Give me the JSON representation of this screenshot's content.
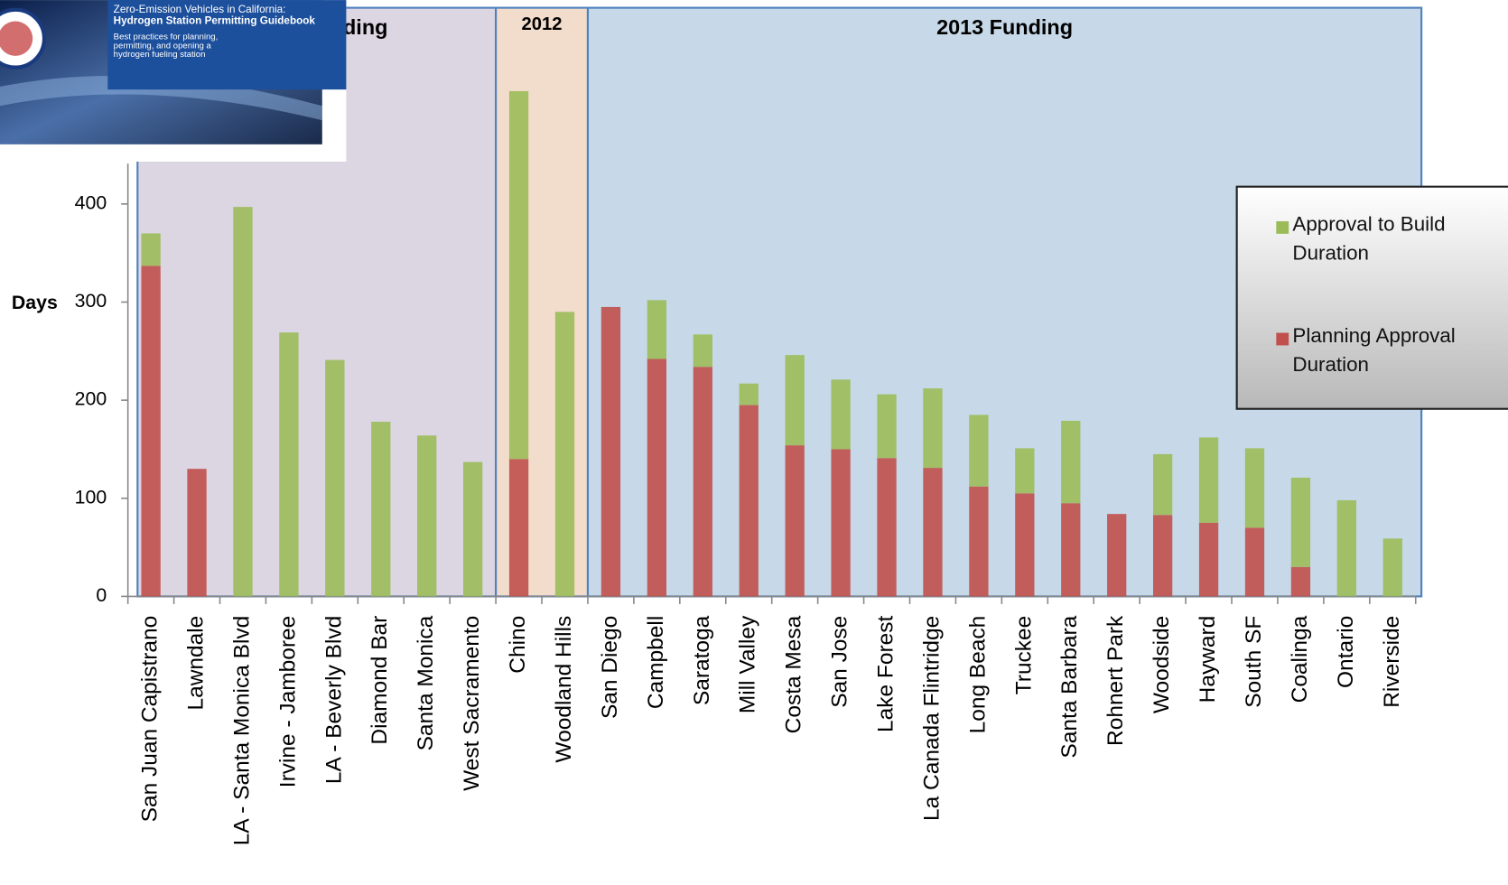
{
  "thumbnail": {
    "title": "Zero-Emission Vehicles in California:",
    "subtitle": "Hydrogen Station Permitting Guidebook",
    "caption": "Best practices for planning, permitting, and opening a hydrogen fueling station"
  },
  "chart_data": {
    "type": "stacked_bar",
    "y_label": "Days",
    "regions": [
      {
        "label": "ding",
        "color": "#dcd6e2"
      },
      {
        "label": "2012",
        "color": "#f2dccb"
      },
      {
        "label": "2013 Funding",
        "color": "#c7d9e8"
      }
    ],
    "categories": [
      "San Juan Capistrano",
      "Lawndale",
      "LA - Santa Monica Blvd",
      "Irvine - Jamboree",
      "LA - Beverly Blvd",
      "Diamond Bar",
      "Santa Monica",
      "West Sacramento",
      "Chino",
      "Woodland Hills",
      "San Diego",
      "Campbell",
      "Saratoga",
      "Mill Valley",
      "Costa Mesa",
      "San Jose",
      "Lake Forest",
      "La Canada Flintridge",
      "Long Beach",
      "Truckee",
      "Santa Barbara",
      "Rohnert Park",
      "Woodside",
      "Hayward",
      "South SF",
      "Coalinga",
      "Ontario",
      "Riverside"
    ],
    "series": [
      {
        "name": "Planning Approval Duration",
        "color": "#c0504d",
        "values": [
          337,
          130,
          0,
          0,
          0,
          0,
          0,
          0,
          140,
          0,
          295,
          242,
          234,
          195,
          154,
          150,
          141,
          131,
          112,
          105,
          95,
          84,
          83,
          75,
          70,
          30,
          0,
          0
        ]
      },
      {
        "name": "Approval to Build Duration",
        "color": "#9bbb59",
        "values": [
          33,
          0,
          397,
          269,
          241,
          178,
          164,
          137,
          375,
          290,
          0,
          60,
          33,
          22,
          92,
          71,
          65,
          81,
          73,
          46,
          84,
          0,
          62,
          87,
          81,
          91,
          98,
          59
        ]
      }
    ],
    "ylim": [
      0,
      600
    ],
    "yticks": [
      0,
      100,
      200,
      300,
      400
    ]
  }
}
